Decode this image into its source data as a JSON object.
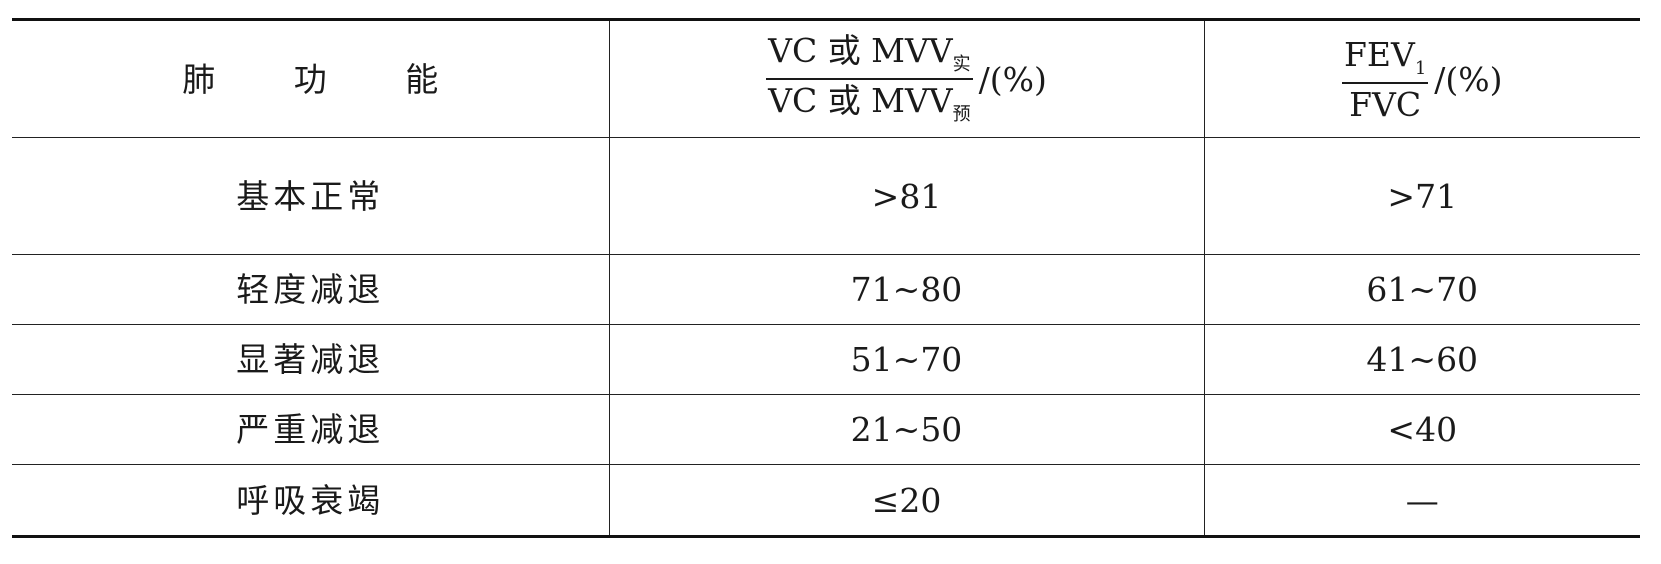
{
  "header": {
    "col1": "肺 功 能",
    "col2": {
      "num_main": "VC 或 MVV",
      "num_sub": "实",
      "den_main": "VC 或 MVV",
      "den_sub": "预",
      "unit": "/(%)"
    },
    "col3": {
      "num_main": "FEV",
      "num_sub": "1",
      "den_main": "FVC",
      "unit": "/(%)"
    }
  },
  "rows": [
    {
      "label": "基本正常",
      "vc": ">81",
      "fev": ">71"
    },
    {
      "label": "轻度减退",
      "vc": "71~80",
      "fev": "61~70"
    },
    {
      "label": "显著减退",
      "vc": "51~70",
      "fev": "41~60"
    },
    {
      "label": "严重减退",
      "vc": "21~50",
      "fev": "<40"
    },
    {
      "label": "呼吸衰竭",
      "vc": "≤20",
      "fev": "—"
    }
  ]
}
